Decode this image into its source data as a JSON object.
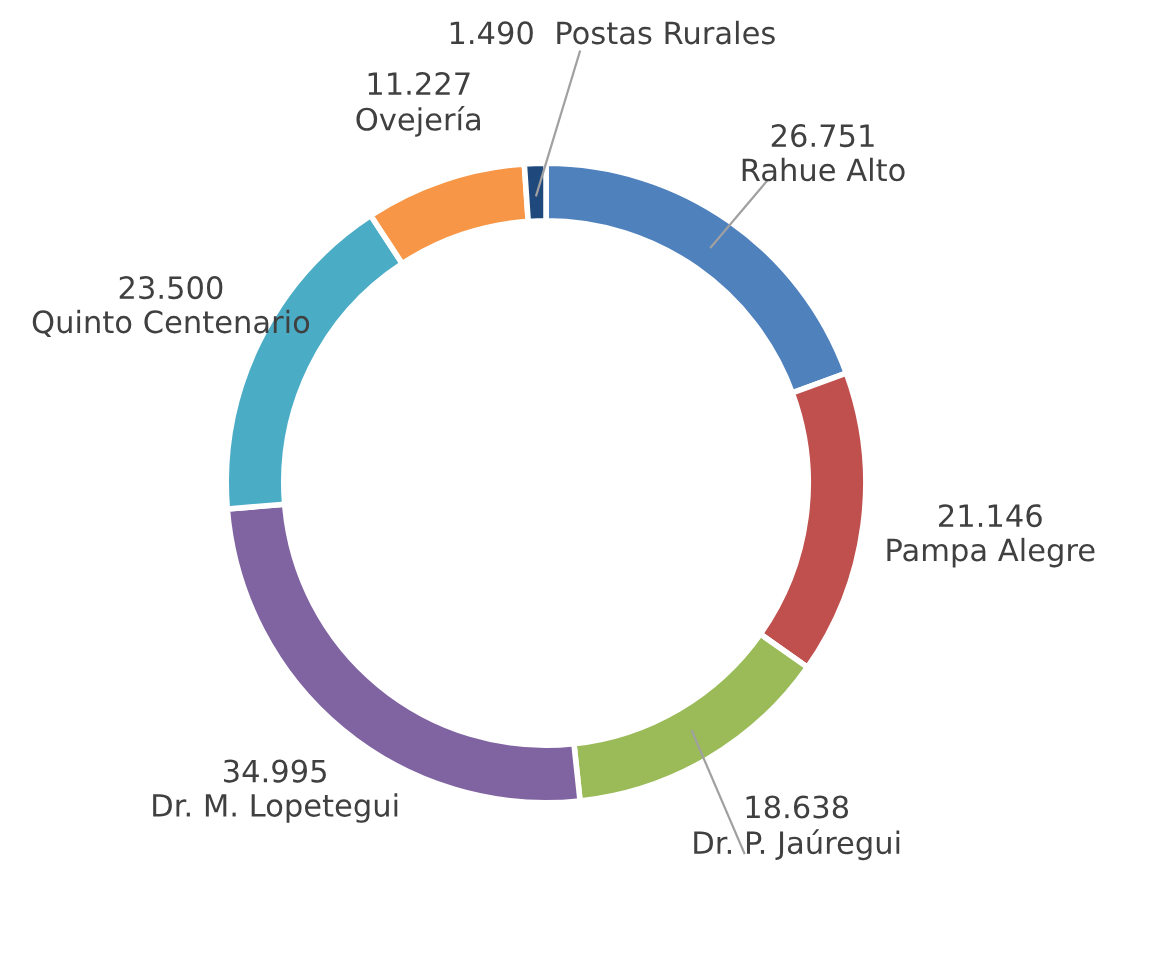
{
  "chart_data": {
    "type": "donut",
    "categories": [
      "Rahue Alto",
      "Pampa Alegre",
      "Dr. P. Jaúregui",
      "Dr. M. Lopetegui",
      "Quinto Centenario",
      "Ovejería",
      "Postas Rurales"
    ],
    "values": [
      26751,
      21146,
      18638,
      34995,
      23500,
      11227,
      1490
    ],
    "value_labels": [
      "26.751",
      "21.146",
      "18.638",
      "34.995",
      "23.500",
      "11.227",
      "1.490"
    ],
    "colors": [
      "#4f81bd",
      "#c0504d",
      "#9bbb59",
      "#8064a2",
      "#4bacc6",
      "#f79646",
      "#1f497d"
    ]
  }
}
